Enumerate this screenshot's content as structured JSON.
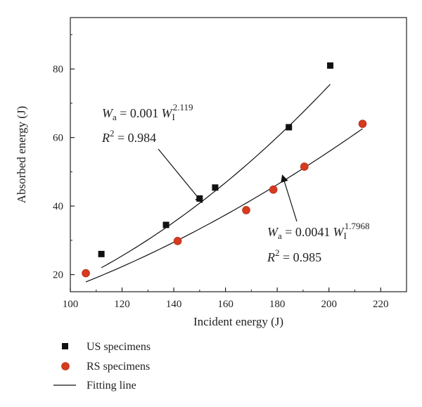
{
  "chart_data": {
    "type": "scatter",
    "xlabel": "Incident energy (J)",
    "ylabel": "Absorbed energy (J)",
    "xlim": [
      100,
      230
    ],
    "ylim": [
      15,
      95
    ],
    "xticks": [
      100,
      120,
      140,
      160,
      180,
      200,
      220
    ],
    "yticks": [
      20,
      40,
      60,
      80
    ],
    "grid": false,
    "legend_position": "bottom-left",
    "series": [
      {
        "name": "US specimens",
        "marker": "square",
        "color": "#111111",
        "points": [
          [
            112,
            26
          ],
          [
            137,
            34.5
          ],
          [
            150,
            42.2
          ],
          [
            156,
            45.4
          ],
          [
            184.5,
            63
          ],
          [
            200.5,
            81
          ]
        ]
      },
      {
        "name": "RS specimens",
        "marker": "circle",
        "color": "#d63a1f",
        "points": [
          [
            106,
            20.4
          ],
          [
            141.5,
            29.8
          ],
          [
            168,
            38.8
          ],
          [
            178.5,
            44.8
          ],
          [
            190.5,
            51.5
          ],
          [
            213,
            64
          ]
        ]
      }
    ],
    "fits": [
      {
        "name": "Fitting line",
        "coef": 0.001,
        "exponent": 2.119,
        "x_range": [
          112,
          200.5
        ],
        "color": "#111111"
      },
      {
        "coef": 0.0041,
        "exponent": 1.7968,
        "x_range": [
          106,
          213
        ],
        "color": "#111111"
      }
    ],
    "annotations": [
      {
        "eq_lhs": "W",
        "eq_lhs_sub": "a",
        "eq_mid": " = 0.001",
        "eq_rhs": "W",
        "eq_rhs_sub": "I",
        "eq_rhs_sup": "2.119",
        "r2_label": "R",
        "r2_sup": "2",
        "r2_value": " = 0.984",
        "arrow_target": [
          151,
          41
        ]
      },
      {
        "eq_lhs": "W",
        "eq_lhs_sub": "a",
        "eq_mid": " = 0.0041",
        "eq_rhs": "W",
        "eq_rhs_sub": "I",
        "eq_rhs_sup": "1.7968",
        "r2_label": "R",
        "r2_sup": "2",
        "r2_value": " = 0.985",
        "arrow_target": [
          182,
          49
        ]
      }
    ],
    "legend": [
      {
        "label": "US specimens",
        "marker": "square"
      },
      {
        "label": "RS specimens",
        "marker": "circle"
      },
      {
        "label": "Fitting line",
        "marker": "line"
      }
    ]
  }
}
